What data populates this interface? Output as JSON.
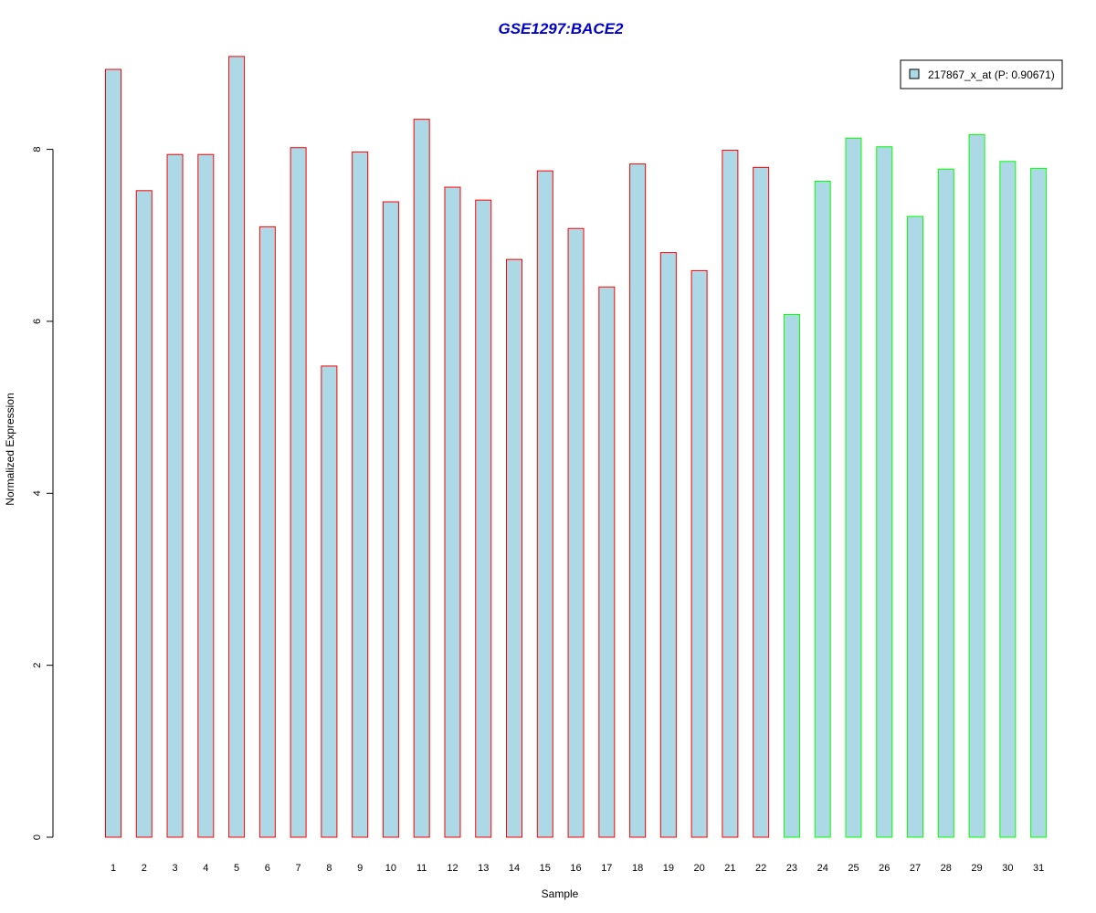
{
  "chart_data": {
    "type": "bar",
    "title": "GSE1297:BACE2",
    "xlabel": "Sample",
    "ylabel": "Normalized Expression",
    "categories": [
      "1",
      "2",
      "3",
      "4",
      "5",
      "6",
      "7",
      "8",
      "9",
      "10",
      "11",
      "12",
      "13",
      "14",
      "15",
      "16",
      "17",
      "18",
      "19",
      "20",
      "21",
      "22",
      "23",
      "24",
      "25",
      "26",
      "27",
      "28",
      "29",
      "30",
      "31"
    ],
    "values": [
      8.93,
      7.52,
      7.94,
      7.94,
      9.08,
      7.1,
      8.02,
      5.48,
      7.97,
      7.39,
      8.35,
      7.56,
      7.41,
      6.72,
      7.75,
      7.08,
      6.4,
      7.83,
      6.8,
      6.59,
      7.99,
      7.79,
      6.08,
      7.63,
      8.13,
      8.03,
      7.22,
      7.77,
      8.17,
      7.86,
      7.78
    ],
    "groups": [
      "red",
      "red",
      "red",
      "red",
      "red",
      "red",
      "red",
      "red",
      "red",
      "red",
      "red",
      "red",
      "red",
      "red",
      "red",
      "red",
      "red",
      "red",
      "red",
      "red",
      "red",
      "red",
      "green",
      "green",
      "green",
      "green",
      "green",
      "green",
      "green",
      "green",
      "green"
    ],
    "ylim": [
      0,
      9.1
    ],
    "yticks": [
      0,
      2,
      4,
      6,
      8
    ],
    "legend": {
      "label": "217867_x_at (P: 0.90671)",
      "position": "top-right"
    },
    "colors": {
      "fill": "#add8e6",
      "red": "#ff0000",
      "green": "#00ff00",
      "title": "#0000cd",
      "axis": "#000000"
    }
  }
}
